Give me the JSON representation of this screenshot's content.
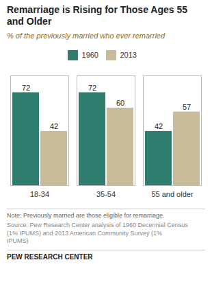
{
  "chart_data": {
    "type": "bar",
    "title": "Remarriage is Rising for Those Ages 55\nand Older",
    "subtitle": "% of the previously married who ever remarried",
    "categories": [
      "18-34",
      "35-54",
      "55 and older"
    ],
    "series": [
      {
        "name": "1960",
        "color": "#2e7d6e",
        "values": [
          72,
          72,
          42
        ]
      },
      {
        "name": "2013",
        "color": "#c8bb97",
        "values": [
          42,
          60,
          57
        ]
      }
    ],
    "ylim": [
      0,
      85
    ],
    "yticks": [],
    "grid": false,
    "legend": "top",
    "data_labels": true,
    "tick_labels": "x",
    "note": "Note: Previously married are those eligible for remarriage.",
    "source": "Source: Pew Research Center analysis of 1960 Decennial Census\n(1% IPUMS)  and 2013 American Community Survey (1%\nIPUMS)",
    "footer": "PEW RESEARCH CENTER"
  }
}
